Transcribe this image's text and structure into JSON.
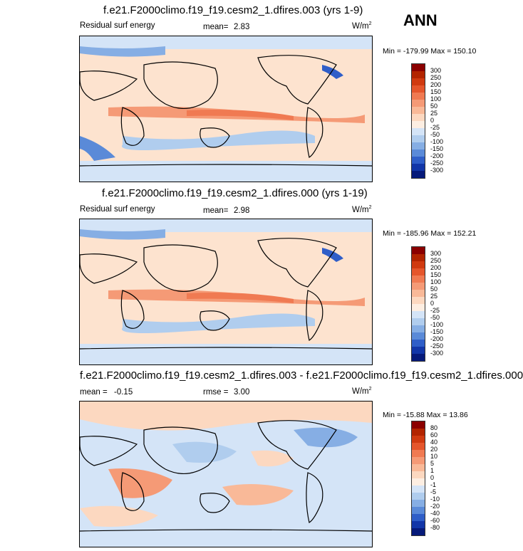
{
  "season": "ANN",
  "panels": [
    {
      "title": "f.e21.F2000climo.f19_f19.cesm2_1.dfires.003 (yrs 1-9)",
      "left_label": "Residual surf energy",
      "mean_label": "mean=",
      "mean_value": "2.83",
      "units": "W/m",
      "units_sup": "2",
      "minmax": "Min = -179.99 Max = 150.10",
      "ticks": [
        "300",
        "250",
        "200",
        "150",
        "100",
        "50",
        "25",
        "0",
        "-25",
        "-50",
        "-100",
        "-150",
        "-200",
        "-250",
        "-300"
      ],
      "colors": [
        "#8b0000",
        "#b22400",
        "#d03a10",
        "#e5562c",
        "#f07a52",
        "#f59a76",
        "#f9b998",
        "#fcd8c0",
        "#fdeee2",
        "#d4e4f7",
        "#b0cdee",
        "#86aee4",
        "#5a8ad8",
        "#2f5ec8",
        "#1236a8",
        "#061a7a"
      ]
    },
    {
      "title": "f.e21.F2000climo.f19_f19.cesm2_1.dfires.000 (yrs 1-19)",
      "left_label": "Residual surf energy",
      "mean_label": "mean=",
      "mean_value": "2.98",
      "units": "W/m",
      "units_sup": "2",
      "minmax": "Min = -185.96 Max = 152.21",
      "ticks": [
        "300",
        "250",
        "200",
        "150",
        "100",
        "50",
        "25",
        "0",
        "-25",
        "-50",
        "-100",
        "-150",
        "-200",
        "-250",
        "-300"
      ],
      "colors": [
        "#8b0000",
        "#b22400",
        "#d03a10",
        "#e5562c",
        "#f07a52",
        "#f59a76",
        "#f9b998",
        "#fcd8c0",
        "#fdeee2",
        "#d4e4f7",
        "#b0cdee",
        "#86aee4",
        "#5a8ad8",
        "#2f5ec8",
        "#1236a8",
        "#061a7a"
      ]
    },
    {
      "title": "f.e21.F2000climo.f19_f19.cesm2_1.dfires.003 - f.e21.F2000climo.f19_f19.cesm2_1.dfires.000",
      "left_label": "mean =",
      "mean_label": "-0.15",
      "mean_value": "",
      "rmse_label": "rmse =",
      "rmse_value": "3.00",
      "units": "W/m",
      "units_sup": "2",
      "minmax": "Min = -15.88 Max = 13.86",
      "ticks": [
        "80",
        "60",
        "40",
        "20",
        "10",
        "5",
        "1",
        "0",
        "-1",
        "-5",
        "-10",
        "-20",
        "-40",
        "-60",
        "-80"
      ],
      "colors": [
        "#8b0000",
        "#b22400",
        "#d03a10",
        "#e5562c",
        "#f07a52",
        "#f59a76",
        "#f9b998",
        "#fcd8c0",
        "#fdeee2",
        "#d4e4f7",
        "#b0cdee",
        "#86aee4",
        "#5a8ad8",
        "#2f5ec8",
        "#1236a8",
        "#061a7a"
      ]
    }
  ]
}
